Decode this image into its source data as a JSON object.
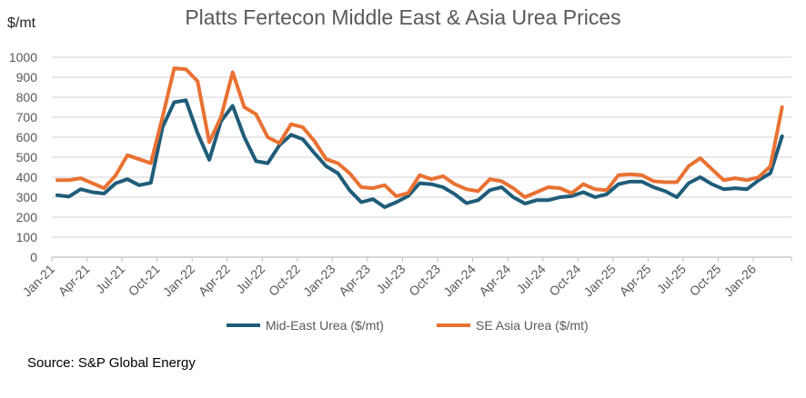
{
  "chart_data": {
    "type": "line",
    "title": "Platts Fertecon Middle East & Asia Urea Prices",
    "ylabel": "$/mt",
    "xlabel": "",
    "ylim": [
      0,
      1000
    ],
    "yticks": [
      0,
      100,
      200,
      300,
      400,
      500,
      600,
      700,
      800,
      900,
      1000
    ],
    "grid": true,
    "legend_position": "bottom",
    "x_tick_labels": [
      "Jan-21",
      "Apr-21",
      "Jul-21",
      "Oct-21",
      "Jan-22",
      "Apr-22",
      "Jul-22",
      "Oct-22",
      "Jan-23",
      "Apr-23",
      "Jul-23",
      "Oct-23",
      "Jan-24",
      "Apr-24",
      "Jul-24",
      "Oct-24",
      "Jan-25",
      "Apr-25",
      "Jul-25",
      "Oct-25",
      "Jan-26"
    ],
    "x_start": "Jan-21",
    "x_end": "Mar-26",
    "series": [
      {
        "name": "Mid-East Urea ($/mt)",
        "color": "#1F5C7A",
        "values": [
          310,
          303,
          340,
          325,
          318,
          370,
          390,
          360,
          372,
          650,
          775,
          785,
          620,
          487,
          680,
          757,
          600,
          480,
          470,
          560,
          612,
          590,
          520,
          455,
          420,
          335,
          275,
          290,
          250,
          275,
          305,
          370,
          365,
          350,
          315,
          270,
          285,
          335,
          350,
          300,
          268,
          285,
          285,
          300,
          305,
          325,
          300,
          315,
          365,
          378,
          378,
          350,
          330,
          300,
          370,
          400,
          365,
          340,
          345,
          340,
          385,
          420,
          605
        ]
      },
      {
        "name": "SE Asia Urea ($/mt)",
        "color": "#E97132",
        "values": [
          385,
          385,
          395,
          370,
          345,
          410,
          510,
          490,
          470,
          700,
          945,
          940,
          880,
          575,
          700,
          925,
          750,
          715,
          600,
          570,
          665,
          650,
          580,
          490,
          470,
          420,
          350,
          345,
          360,
          305,
          320,
          410,
          390,
          405,
          365,
          340,
          330,
          390,
          380,
          345,
          300,
          325,
          350,
          345,
          320,
          365,
          340,
          335,
          410,
          415,
          410,
          380,
          375,
          375,
          455,
          495,
          440,
          385,
          395,
          385,
          400,
          455,
          750
        ]
      }
    ]
  },
  "source": "Source: S&P Global Energy"
}
